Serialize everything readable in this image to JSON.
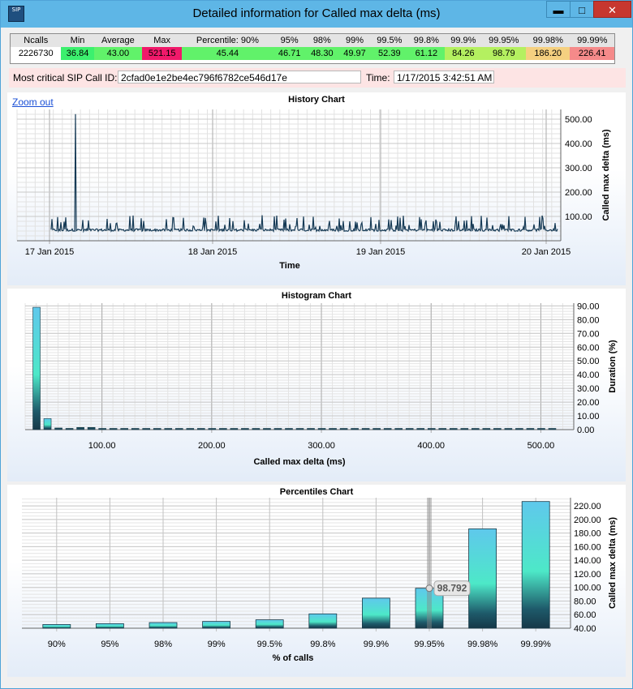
{
  "window": {
    "title": "Detailed information for Called max delta (ms)",
    "app_icon": "SIP",
    "btn_min": "▬",
    "btn_max": "□",
    "btn_close": "✕"
  },
  "stats": {
    "headers": [
      "Ncalls",
      "Min",
      "Average",
      "Max",
      "Percentile: 90%",
      "95%",
      "98%",
      "99%",
      "99.5%",
      "99.8%",
      "99.9%",
      "99.95%",
      "99.98%",
      "99.99%"
    ],
    "values": [
      "2226730",
      "36.84",
      "43.00",
      "521.15",
      "45.44",
      "46.71",
      "48.30",
      "49.97",
      "52.39",
      "61.12",
      "84.26",
      "98.79",
      "186.20",
      "226.41"
    ],
    "colors": [
      "#ffffff",
      "#3cf06e",
      "#61f26a",
      "#f0196a",
      "#61f26a",
      "#61f26a",
      "#61f26a",
      "#61f26a",
      "#61f26a",
      "#61f26a",
      "#b4f060",
      "#b4f060",
      "#f5d080",
      "#f58a8a"
    ]
  },
  "call": {
    "id_label": "Most critical SIP Call ID:",
    "id_value": "2cfad0e1e2be4ec796f6782ce546d17e",
    "time_label": "Time:",
    "time_value": "1/17/2015 3:42:51 AM"
  },
  "history": {
    "zoom_label": "Zoom out",
    "chart_data": {
      "type": "line",
      "title": "History Chart",
      "xlabel": "Time",
      "ylabel": "Called max delta (ms)",
      "x_ticks": [
        "17 Jan 2015",
        "18 Jan 2015",
        "19 Jan 2015",
        "20 Jan 2015"
      ],
      "y_ticks": [
        "100.00",
        "200.00",
        "300.00",
        "400.00",
        "500.00"
      ],
      "ylim": [
        0,
        540
      ],
      "baseline": 45,
      "peak": {
        "x": "17 Jan 2015 03:42",
        "y": 521.15
      },
      "typical_spikes": 100
    }
  },
  "histogram": {
    "chart_data": {
      "type": "bar",
      "title": "Histogram Chart",
      "xlabel": "Called max delta (ms)",
      "ylabel": "Duration (%)",
      "x_ticks": [
        "100.00",
        "200.00",
        "300.00",
        "400.00",
        "500.00"
      ],
      "y_ticks": [
        "0.00",
        "10.00",
        "20.00",
        "30.00",
        "40.00",
        "50.00",
        "60.00",
        "70.00",
        "80.00",
        "90.00"
      ],
      "xlim": [
        30,
        530
      ],
      "ylim": [
        0,
        92
      ],
      "bins": [
        40,
        50,
        60,
        70,
        80,
        90,
        100,
        110,
        120,
        130,
        140,
        150,
        160,
        170,
        180,
        190,
        200,
        210,
        220,
        230,
        240,
        250,
        260,
        270,
        280,
        290,
        300,
        310,
        320,
        330,
        340,
        350,
        360,
        370,
        380,
        390,
        400,
        410,
        420,
        430,
        440,
        450,
        460,
        470,
        480,
        490,
        500,
        510
      ],
      "values": [
        89,
        8,
        1.2,
        0.9,
        1.6,
        1.6,
        0.8,
        0.6,
        0.5,
        0.5,
        0.5,
        0.5,
        0.5,
        0.5,
        0.5,
        0.5,
        0.5,
        0.5,
        0.5,
        0.5,
        0.5,
        0.5,
        0.5,
        0.5,
        0.5,
        0.5,
        0.5,
        0.5,
        0.5,
        0.5,
        0.5,
        0.5,
        0.5,
        0.5,
        0.5,
        0.5,
        0.5,
        0.5,
        0.5,
        0.5,
        0.5,
        0.5,
        0.5,
        0.5,
        0.5,
        0.5,
        0.5,
        0.5
      ]
    }
  },
  "percentiles": {
    "chart_data": {
      "type": "bar",
      "title": "Percentiles Chart",
      "xlabel": "% of calls",
      "ylabel": "Called max delta (ms)",
      "categories": [
        "90%",
        "95%",
        "98%",
        "99%",
        "99.5%",
        "99.8%",
        "99.9%",
        "99.95%",
        "99.98%",
        "99.99%"
      ],
      "values": [
        45.44,
        46.71,
        48.3,
        49.97,
        52.39,
        61.12,
        84.26,
        98.79,
        186.2,
        226.41
      ],
      "y_ticks": [
        "40.00",
        "60.00",
        "80.00",
        "100.00",
        "120.00",
        "140.00",
        "160.00",
        "180.00",
        "200.00",
        "220.00"
      ],
      "ylim": [
        40,
        232
      ],
      "tooltip": "98.792"
    }
  }
}
